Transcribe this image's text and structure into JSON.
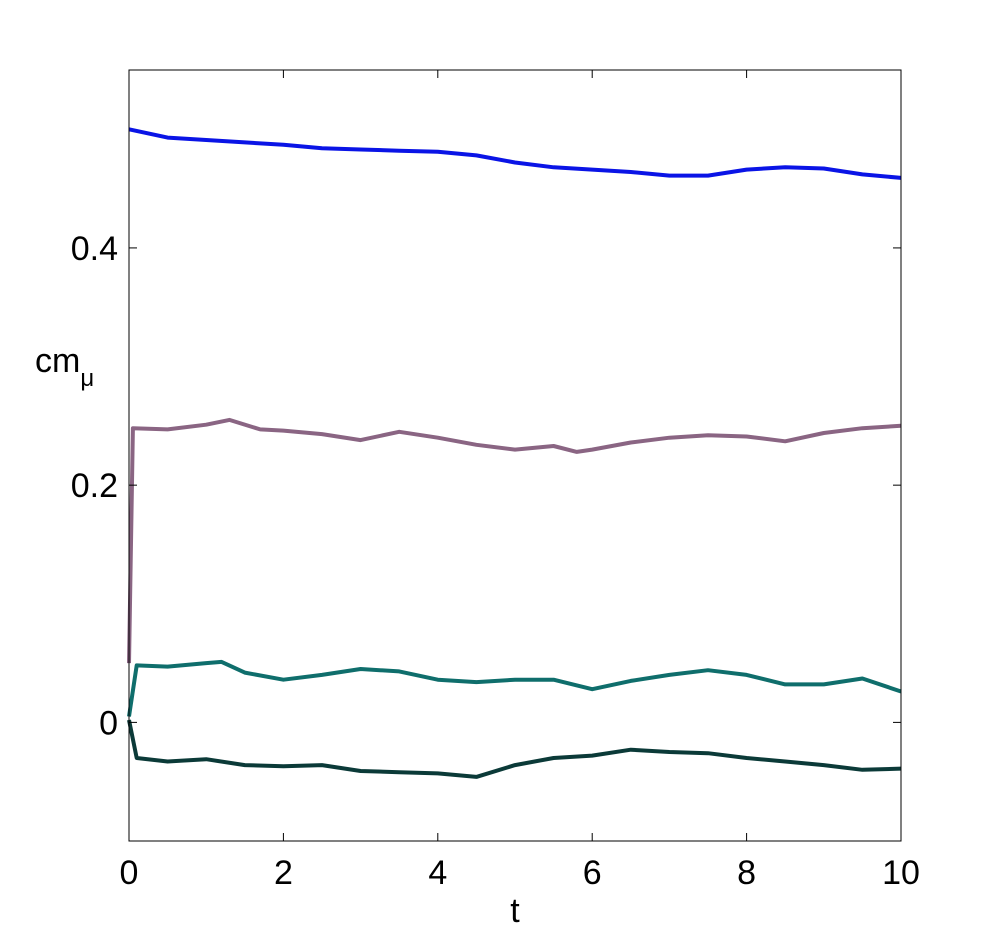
{
  "chart_data": {
    "type": "line",
    "xlabel": "t",
    "ylabel": "cm",
    "ylabel_subscript": "μ",
    "xlim": [
      0,
      10
    ],
    "ylim": [
      -0.1,
      0.55
    ],
    "xticks": [
      0,
      2,
      4,
      6,
      8,
      10
    ],
    "xtick_labels": [
      "0",
      "2",
      "4",
      "6",
      "8",
      "10"
    ],
    "yticks": [
      0,
      0.2,
      0.4
    ],
    "ytick_labels": [
      "0",
      "0.2",
      "0.4"
    ],
    "grid": false,
    "legend": "none",
    "series": [
      {
        "color": "#0a14e6",
        "x": [
          0,
          0.5,
          1,
          1.5,
          2,
          2.5,
          3,
          3.5,
          4,
          4.5,
          5,
          5.5,
          6,
          6.5,
          7,
          7.5,
          8,
          8.5,
          9,
          9.5,
          10
        ],
        "y": [
          0.5,
          0.493,
          0.491,
          0.489,
          0.487,
          0.484,
          0.483,
          0.482,
          0.481,
          0.478,
          0.472,
          0.468,
          0.466,
          0.464,
          0.461,
          0.461,
          0.466,
          0.468,
          0.467,
          0.462,
          0.459
        ]
      },
      {
        "color": "#8a6583",
        "x": [
          0,
          0.05,
          0.5,
          1,
          1.3,
          1.7,
          2,
          2.5,
          3,
          3.5,
          4,
          4.5,
          5,
          5.5,
          5.8,
          6,
          6.5,
          7,
          7.5,
          8,
          8.5,
          9,
          9.5,
          10
        ],
        "y": [
          0.05,
          0.248,
          0.247,
          0.251,
          0.255,
          0.247,
          0.246,
          0.243,
          0.238,
          0.245,
          0.24,
          0.234,
          0.23,
          0.233,
          0.228,
          0.23,
          0.236,
          0.24,
          0.242,
          0.241,
          0.237,
          0.244,
          0.248,
          0.25
        ]
      },
      {
        "color": "#0f6e6c",
        "x": [
          0,
          0.1,
          0.5,
          1,
          1.2,
          1.5,
          2,
          2.5,
          3,
          3.5,
          4,
          4.5,
          5,
          5.5,
          6,
          6.5,
          7,
          7.5,
          8,
          8.5,
          9,
          9.5,
          10
        ],
        "y": [
          0.005,
          0.048,
          0.047,
          0.05,
          0.051,
          0.042,
          0.036,
          0.04,
          0.045,
          0.043,
          0.036,
          0.034,
          0.036,
          0.036,
          0.028,
          0.035,
          0.04,
          0.044,
          0.04,
          0.032,
          0.032,
          0.037,
          0.026
        ]
      },
      {
        "color": "#0b3a38",
        "x": [
          0,
          0.1,
          0.5,
          1,
          1.5,
          2,
          2.5,
          3,
          3.5,
          4,
          4.5,
          5,
          5.5,
          6,
          6.5,
          7,
          7.5,
          8,
          8.5,
          9,
          9.5,
          10
        ],
        "y": [
          0.002,
          -0.03,
          -0.033,
          -0.031,
          -0.036,
          -0.037,
          -0.036,
          -0.041,
          -0.042,
          -0.043,
          -0.046,
          -0.036,
          -0.03,
          -0.028,
          -0.023,
          -0.025,
          -0.026,
          -0.03,
          -0.033,
          -0.036,
          -0.04,
          -0.039
        ]
      }
    ]
  }
}
